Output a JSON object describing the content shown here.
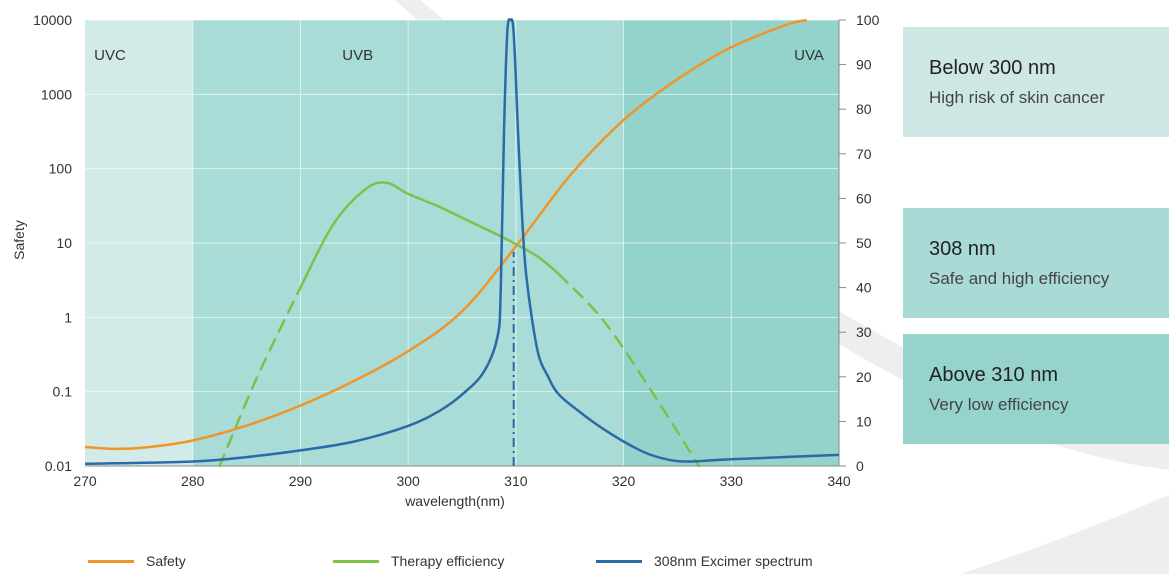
{
  "chart_data": {
    "type": "line",
    "xlabel": "wavelength(nm)",
    "ylabel": "Safety",
    "xlim": [
      270,
      340
    ],
    "x_ticks": [
      270,
      280,
      290,
      300,
      310,
      320,
      330,
      340
    ],
    "y_left": {
      "scale": "log",
      "range": [
        0.01,
        10000
      ],
      "ticks": [
        "0.01",
        "0.1",
        "1",
        "10",
        "100",
        "1000",
        "10000"
      ]
    },
    "y_right": {
      "scale": "linear",
      "range": [
        0,
        100
      ],
      "ticks": [
        0,
        10,
        20,
        30,
        40,
        50,
        60,
        70,
        80,
        90,
        100
      ]
    },
    "grid": true,
    "bands": [
      {
        "label": "UVC",
        "from": 270,
        "to": 280,
        "color": "#d3ebe8"
      },
      {
        "label": "UVB",
        "from": 280,
        "to": 320,
        "color": "#a9dcd6"
      },
      {
        "label": "UVA",
        "from": 320,
        "to": 340,
        "color": "#93d3cb"
      }
    ],
    "series": [
      {
        "name": "Safety",
        "axis": "left",
        "color": "#f0952a",
        "x": [
          270,
          273,
          276,
          280,
          285,
          290,
          295,
          300,
          305,
          310,
          315,
          320,
          325,
          330,
          335,
          337
        ],
        "y": [
          0.018,
          0.017,
          0.018,
          0.022,
          0.035,
          0.065,
          0.14,
          0.35,
          1.2,
          9,
          80,
          450,
          1600,
          4300,
          8500,
          10000
        ]
      },
      {
        "name": "Therapy efficiency",
        "axis": "right",
        "color": "#7cc24a",
        "x": [
          282.5,
          286,
          290,
          293,
          296,
          298,
          300,
          303,
          306,
          309,
          312,
          314,
          318,
          322,
          327
        ],
        "y": [
          0,
          20,
          40,
          54,
          62,
          63.5,
          61,
          58,
          54.5,
          51,
          47,
          43,
          33,
          19,
          0
        ],
        "dashed_ranges": [
          [
            282.5,
            290
          ],
          [
            314,
            327
          ]
        ]
      },
      {
        "name": "308nm Excimer spectrum",
        "axis": "right",
        "color": "#2b6aa8",
        "x": [
          270,
          280,
          285,
          290,
          295,
          300,
          303,
          305,
          307,
          308.3,
          308.6,
          308.9,
          309.2,
          309.5,
          309.8,
          310.2,
          310.6,
          311,
          312,
          313,
          314,
          316,
          318,
          320,
          322,
          324,
          326,
          330,
          340
        ],
        "y": [
          0.5,
          1,
          2,
          3.5,
          5.5,
          9,
          12.5,
          16,
          21,
          29,
          40,
          75,
          97,
          100,
          97,
          75,
          55,
          42,
          26,
          20,
          16,
          12,
          8.5,
          5.5,
          3,
          1.5,
          1,
          1.5,
          2.5
        ]
      }
    ],
    "annotations": [
      {
        "type": "vertical-dashdot",
        "x": 309.8,
        "from_y": 0,
        "to_y": 48,
        "axis": "right",
        "color": "#2b6aa8"
      }
    ],
    "legend": {
      "placement": "bottom"
    }
  },
  "info_boxes": [
    {
      "title": "Below 300 nm",
      "description": "High risk of skin cancer"
    },
    {
      "title": "308 nm",
      "description": "Safe and high efficiency"
    },
    {
      "title": "Above 310  nm",
      "description": "Very low efficiency"
    }
  ]
}
